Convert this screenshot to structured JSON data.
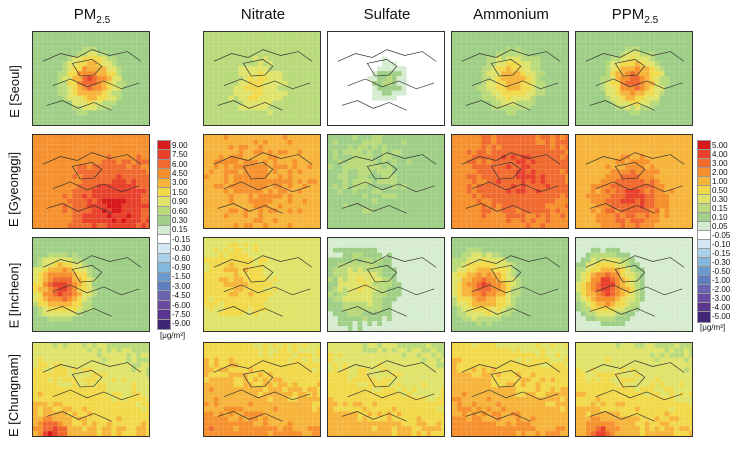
{
  "columns": [
    {
      "main": "PM",
      "sub": "2.5"
    },
    {
      "main": "Nitrate",
      "sub": ""
    },
    {
      "main": "Sulfate",
      "sub": ""
    },
    {
      "main": "Ammonium",
      "sub": ""
    },
    {
      "main": "PPM",
      "sub": "2.5"
    }
  ],
  "rows": [
    "E [Seoul]",
    "E [Gyeonggi]",
    "E [Incheon]",
    "E [Chungnam]"
  ],
  "colorbar_left": {
    "labels": [
      "9.00",
      "7.50",
      "6.00",
      "4.50",
      "3.00",
      "1.50",
      "0.90",
      "0.60",
      "0.30",
      "0.15",
      "-0.15",
      "-0.30",
      "-0.60",
      "-0.90",
      "-1.50",
      "-3.00",
      "-4.50",
      "-6.00",
      "-7.50",
      "-9.00"
    ],
    "unit": "[μg/m³]"
  },
  "colorbar_right": {
    "labels": [
      "5.00",
      "4.00",
      "3.00",
      "2.00",
      "1.00",
      "0.50",
      "0.30",
      "0.15",
      "0.10",
      "0.05",
      "-0.05",
      "-0.10",
      "-0.15",
      "-0.30",
      "-0.50",
      "-1.00",
      "-2.00",
      "-3.00",
      "-4.00",
      "-5.00"
    ],
    "unit": "[μg/m³]"
  },
  "chart_data": {
    "type": "heatmap",
    "title": "",
    "colors": [
      "#d7191c",
      "#e8412b",
      "#f06a2f",
      "#f5902c",
      "#f6b43a",
      "#f2d94a",
      "#dfe36a",
      "#b9da7a",
      "#9fcf86",
      "#d6ecd0",
      "#ffffff",
      "#d4e8f3",
      "#a9d0e8",
      "#83b7dc",
      "#6a9acd",
      "#5d7fc0",
      "#6a63b0",
      "#6a4aa0",
      "#5a3690",
      "#3f2676"
    ],
    "panels": [
      [
        {
          "base": 8,
          "hotspot": [
            0.48,
            0.5
          ],
          "peak": 1,
          "spread": 0.3,
          "gradient": "none"
        },
        {
          "base": 7,
          "hotspot": [
            0.45,
            0.55
          ],
          "peak": 5,
          "spread": 0.28,
          "gradient": "none"
        },
        {
          "base": 10,
          "hotspot": [
            0.5,
            0.5
          ],
          "peak": 7,
          "spread": 0.2,
          "gradient": "none"
        },
        {
          "base": 8,
          "hotspot": [
            0.5,
            0.5
          ],
          "peak": 3,
          "spread": 0.3,
          "gradient": "none"
        },
        {
          "base": 8,
          "hotspot": [
            0.48,
            0.5
          ],
          "peak": 1,
          "spread": 0.3,
          "gradient": "none"
        }
      ],
      [
        {
          "base": 3,
          "hotspot": [
            0.7,
            0.75
          ],
          "peak": 0,
          "spread": 0.5,
          "gradient": "none"
        },
        {
          "base": 4,
          "hotspot": [
            0.45,
            0.45
          ],
          "peak": 3,
          "spread": 0.55,
          "gradient": "none"
        },
        {
          "base": 8,
          "hotspot": [
            0.3,
            0.3
          ],
          "peak": 7,
          "spread": 0.45,
          "gradient": "none"
        },
        {
          "base": 3,
          "hotspot": [
            0.6,
            0.4
          ],
          "peak": 1,
          "spread": 0.55,
          "gradient": "none"
        },
        {
          "base": 4,
          "hotspot": [
            0.45,
            0.65
          ],
          "peak": 1,
          "spread": 0.4,
          "gradient": "none"
        }
      ],
      [
        {
          "base": 8,
          "hotspot": [
            0.22,
            0.5
          ],
          "peak": 0,
          "spread": 0.32,
          "gradient": "none"
        },
        {
          "base": 6,
          "hotspot": [
            0.25,
            0.45
          ],
          "peak": 4,
          "spread": 0.4,
          "gradient": "none"
        },
        {
          "base": 9,
          "hotspot": [
            0.25,
            0.5
          ],
          "peak": 5,
          "spread": 0.4,
          "gradient": "none"
        },
        {
          "base": 8,
          "hotspot": [
            0.25,
            0.5
          ],
          "peak": 1,
          "spread": 0.35,
          "gradient": "none"
        },
        {
          "base": 9,
          "hotspot": [
            0.25,
            0.5
          ],
          "peak": 0,
          "spread": 0.35,
          "gradient": "none"
        }
      ],
      [
        {
          "base": 6,
          "hotspot": [
            0.15,
            0.95
          ],
          "peak": 0,
          "spread": 0.25,
          "gradient": "diag"
        },
        {
          "base": 5,
          "hotspot": [
            0.2,
            0.9
          ],
          "peak": 3,
          "spread": 0.4,
          "gradient": "diag"
        },
        {
          "base": 6,
          "hotspot": [
            0.2,
            0.9
          ],
          "peak": 4,
          "spread": 0.4,
          "gradient": "diag"
        },
        {
          "base": 5,
          "hotspot": [
            0.2,
            0.9
          ],
          "peak": 3,
          "spread": 0.4,
          "gradient": "diag"
        },
        {
          "base": 6,
          "hotspot": [
            0.2,
            0.95
          ],
          "peak": 1,
          "spread": 0.3,
          "gradient": "diag"
        }
      ]
    ]
  }
}
